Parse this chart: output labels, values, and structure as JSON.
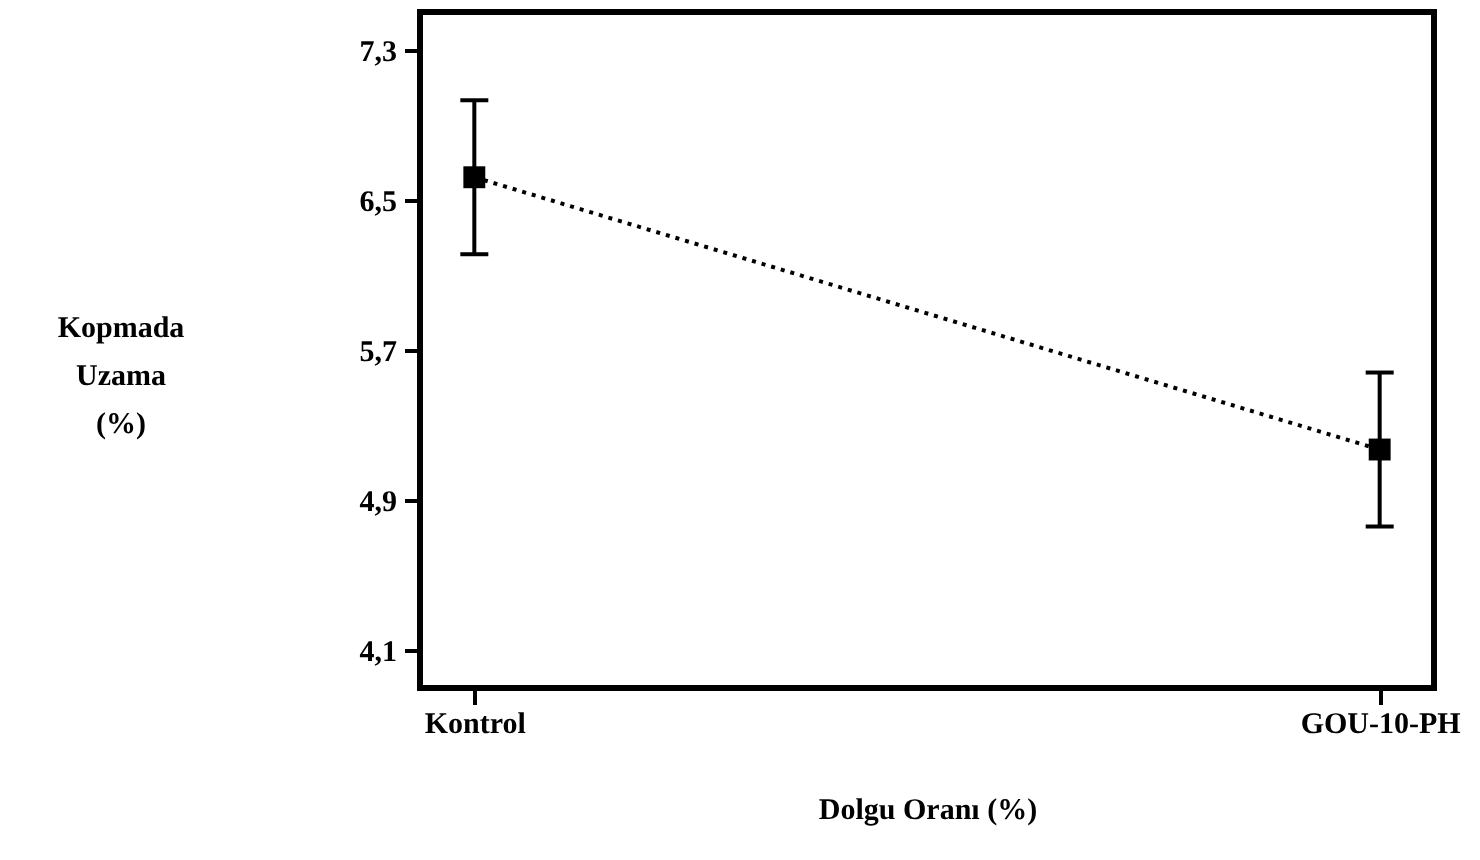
{
  "chart_data": {
    "type": "line",
    "xlabel": "Dolgu Oranı (%)",
    "ylabel": "Kopmada Uzama (%)",
    "categories": [
      "Kontrol",
      "GOU-10-PH"
    ],
    "series": [
      {
        "color": "#000000",
        "values": [
          6.62,
          5.17
        ],
        "errors": [
          0.41,
          0.41
        ]
      }
    ],
    "ylim": [
      3.9,
      7.5
    ],
    "yticks": [
      {
        "value": 4.1,
        "label": "4,1"
      },
      {
        "value": 4.9,
        "label": "4,9"
      },
      {
        "value": 5.7,
        "label": "5,7"
      },
      {
        "value": 6.5,
        "label": "6,5"
      },
      {
        "value": 7.3,
        "label": "7,3"
      }
    ],
    "marker": "square",
    "line_style": "dotted",
    "grid": false
  }
}
